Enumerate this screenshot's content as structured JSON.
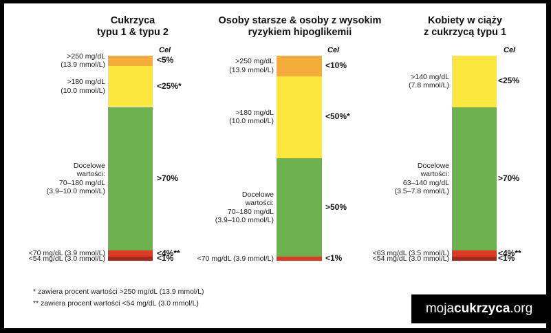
{
  "colors": {
    "very_high": "#f5ac3a",
    "high": "#fbe73e",
    "in_range": "#6db24f",
    "low": "#dd3a23",
    "very_low": "#a8261a"
  },
  "chart_data": [
    {
      "type": "bar",
      "title": "Cukrzyca\ntypu 1 & typu 2",
      "target_header": "Cel",
      "segments": [
        {
          "range": ">250 mg/dL\n(13.9 mmol/L)",
          "target": "<5%",
          "value": 5,
          "level": "very_high"
        },
        {
          "range": ">180 mg/dL\n(10.0 mmol/L)",
          "target": "<25%*",
          "value": 20,
          "level": "high"
        },
        {
          "range": "Docelowe\nwartości:\n70–180 mg/dL\n(3.9–10.0 mmol/L)",
          "target": ">70%",
          "value": 70,
          "level": "in_range"
        },
        {
          "range": "<70 mg/dL (3.9 mmol/L)",
          "target": "<4%**",
          "value": 3,
          "level": "low"
        },
        {
          "range": "<54 mg/dL (3.0 mmol/L)",
          "target": "<1%",
          "value": 2,
          "level": "very_low"
        }
      ]
    },
    {
      "type": "bar",
      "title": "Osoby starsze & osoby z wysokim\nryzykiem hipoglikemii",
      "target_header": "Cel",
      "segments": [
        {
          "range": ">250 mg/dL\n(13.9 mmol/L)",
          "target": "<10%",
          "value": 10,
          "level": "very_high"
        },
        {
          "range": ">180 mg/dL\n(10.0 mmol/L)",
          "target": "<50%*",
          "value": 40,
          "level": "high"
        },
        {
          "range": "Docelowe\nwartości:\n70–180 mg/dL\n(3.9–10.0 mmol/L)",
          "target": ">50%",
          "value": 48,
          "level": "in_range"
        },
        {
          "range": "<70 mg/dL (3.9 mmol/L)",
          "target": "<1%",
          "value": 2,
          "level": "low"
        }
      ]
    },
    {
      "type": "bar",
      "title": "Kobiety w ciąży\nz cukrzycą typu 1",
      "target_header": "Cel",
      "segments": [
        {
          "range": ">140 mg/dL\n(7.8 mmol/L)",
          "target": "<25%",
          "value": 25,
          "level": "high"
        },
        {
          "range": "Docelowe\nwartości:\n63–140 mg/dL\n(3.5–7.8 mmol/L)",
          "target": ">70%",
          "value": 70,
          "level": "in_range"
        },
        {
          "range": "<63 mg/dL (3.5 mmol/L)",
          "target": "<4%**",
          "value": 3,
          "level": "low"
        },
        {
          "range": "<54 mg/dL (3.0 mmol/L)",
          "target": "<1%",
          "value": 2,
          "level": "very_low"
        }
      ]
    }
  ],
  "footnotes": [
    "* zawiera procent wartości >250 mg/dL (13.9 mmol/L)",
    "** zawiera procent wartości <54 mg/dL (3.0 mmol/L)"
  ],
  "logo": {
    "prefix": "moja",
    "bold": "cukrzyca",
    "suffix": ".org"
  }
}
